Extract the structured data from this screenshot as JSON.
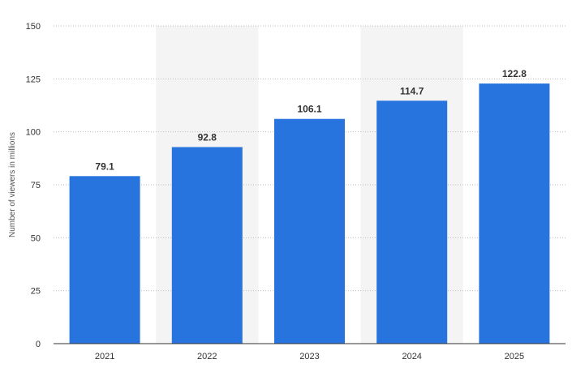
{
  "chart_data": {
    "type": "bar",
    "categories": [
      "2021",
      "2022",
      "2023",
      "2024",
      "2025"
    ],
    "values": [
      79.1,
      92.8,
      106.1,
      114.7,
      122.8
    ],
    "data_labels": [
      "79.1",
      "92.8",
      "106.1",
      "114.7",
      "122.8"
    ],
    "ylabel": "Number of viewers in millions",
    "xlabel": "",
    "ylim": [
      0,
      150
    ],
    "yticks": [
      0,
      25,
      50,
      75,
      100,
      125,
      150
    ],
    "ytick_labels": [
      "0",
      "25",
      "50",
      "75",
      "100",
      "125",
      "150"
    ],
    "grid": true,
    "colors": {
      "bar": "#2874de",
      "band": "#f4f4f4"
    }
  }
}
